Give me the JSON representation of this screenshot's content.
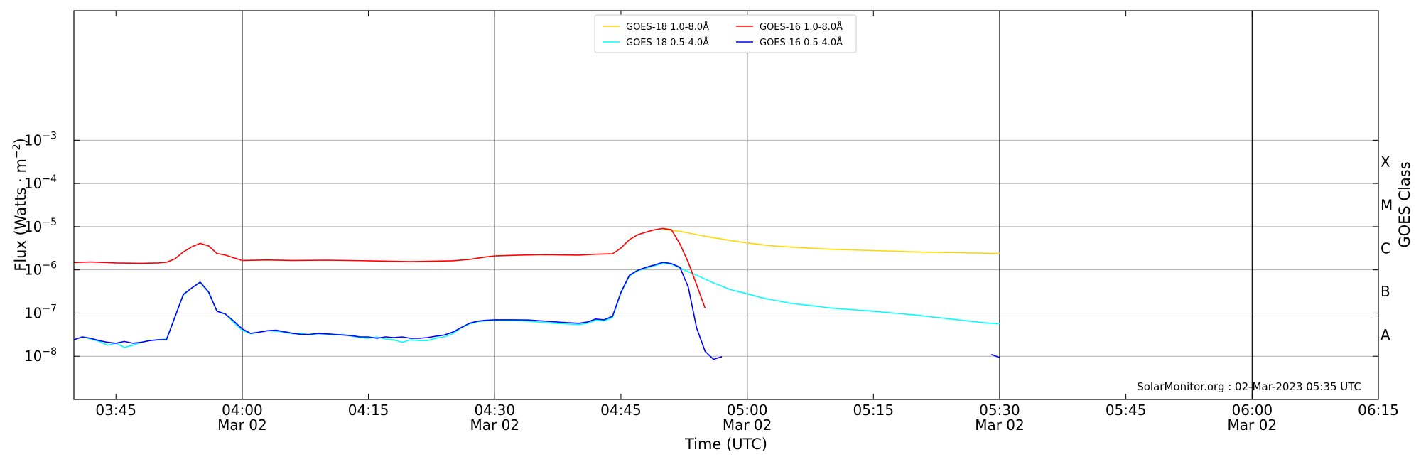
{
  "chart_data": {
    "type": "line",
    "title": "",
    "xlabel": "Time (UTC)",
    "ylabel": "Flux (Watts · m",
    "ylabel_sup": "−2",
    "ylabel_close": ")",
    "right_axis_label": "GOES Class",
    "scale_y": "log",
    "ylim_exp": [
      -9,
      0
    ],
    "xlim_min": [
      -20,
      135
    ],
    "x_unit": "minutes after 04:00 UTC, 02-Mar-2023",
    "grid": "horizontal at decades; vertical lines at 30-minute marks",
    "legend_position": "top-center",
    "credit": "SolarMonitor.org : 02-Mar-2023 05:35 UTC",
    "x_ticks": [
      {
        "t": -15,
        "time": "03:45",
        "date": ""
      },
      {
        "t": 0,
        "time": "04:00",
        "date": "Mar 02"
      },
      {
        "t": 15,
        "time": "04:15",
        "date": ""
      },
      {
        "t": 30,
        "time": "04:30",
        "date": "Mar 02"
      },
      {
        "t": 45,
        "time": "04:45",
        "date": ""
      },
      {
        "t": 60,
        "time": "05:00",
        "date": "Mar 02"
      },
      {
        "t": 75,
        "time": "05:15",
        "date": ""
      },
      {
        "t": 90,
        "time": "05:30",
        "date": "Mar 02"
      },
      {
        "t": 105,
        "time": "05:45",
        "date": ""
      },
      {
        "t": 120,
        "time": "06:00",
        "date": "Mar 02"
      },
      {
        "t": 135,
        "time": "06:15",
        "date": ""
      }
    ],
    "vlines": [
      0,
      30,
      60,
      90,
      120
    ],
    "y_ticks": [
      {
        "exp": -8,
        "base": "10",
        "sup": "−8"
      },
      {
        "exp": -7,
        "base": "10",
        "sup": "−7"
      },
      {
        "exp": -6,
        "base": "10",
        "sup": "−6"
      },
      {
        "exp": -5,
        "base": "10",
        "sup": "−5"
      },
      {
        "exp": -4,
        "base": "10",
        "sup": "−4"
      },
      {
        "exp": -3,
        "base": "10",
        "sup": "−3"
      }
    ],
    "goes_classes": [
      {
        "label": "A",
        "exp": -7.5
      },
      {
        "label": "B",
        "exp": -6.5
      },
      {
        "label": "C",
        "exp": -5.5
      },
      {
        "label": "M",
        "exp": -4.5
      },
      {
        "label": "X",
        "exp": -3.5
      }
    ],
    "series": [
      {
        "name": "GOES-18 1.0-8.0Å",
        "color": "#ffd700",
        "points": [
          [
            50,
            8.7e-06
          ],
          [
            52,
            7.8e-06
          ],
          [
            55,
            6e-06
          ],
          [
            58,
            4.8e-06
          ],
          [
            60,
            4.2e-06
          ],
          [
            63,
            3.6e-06
          ],
          [
            66,
            3.3e-06
          ],
          [
            70,
            3e-06
          ],
          [
            75,
            2.8e-06
          ],
          [
            80,
            2.6e-06
          ],
          [
            85,
            2.5e-06
          ],
          [
            90,
            2.4e-06
          ]
        ]
      },
      {
        "name": "GOES-18 0.5-4.0Å",
        "color": "#00ffff",
        "points": [
          [
            -20,
            2.4e-08
          ],
          [
            -19,
            2.8e-08
          ],
          [
            -18,
            2.5e-08
          ],
          [
            -17,
            2.2e-08
          ],
          [
            -16,
            1.8e-08
          ],
          [
            -15,
            2e-08
          ],
          [
            -14,
            1.6e-08
          ],
          [
            -13,
            1.8e-08
          ],
          [
            -12,
            2.1e-08
          ],
          [
            -11,
            2.3e-08
          ],
          [
            -10,
            2.4e-08
          ],
          [
            -9,
            2.5e-08
          ],
          [
            -8,
            8e-08
          ],
          [
            -7,
            2.6e-07
          ],
          [
            -6,
            3.8e-07
          ],
          [
            -5,
            5.1e-07
          ],
          [
            -4,
            3e-07
          ],
          [
            -3,
            1.1e-07
          ],
          [
            -2,
            9.5e-08
          ],
          [
            -1,
            6e-08
          ],
          [
            0,
            4e-08
          ],
          [
            1,
            3.3e-08
          ],
          [
            2,
            3.6e-08
          ],
          [
            3,
            3.9e-08
          ],
          [
            4,
            3.8e-08
          ],
          [
            5,
            3.6e-08
          ],
          [
            6,
            3.3e-08
          ],
          [
            7,
            3.4e-08
          ],
          [
            8,
            3.1e-08
          ],
          [
            9,
            3.3e-08
          ],
          [
            10,
            3.2e-08
          ],
          [
            11,
            3.1e-08
          ],
          [
            12,
            3.2e-08
          ],
          [
            13,
            2.9e-08
          ],
          [
            14,
            2.7e-08
          ],
          [
            15,
            2.6e-08
          ],
          [
            16,
            2.8e-08
          ],
          [
            17,
            2.5e-08
          ],
          [
            18,
            2.4e-08
          ],
          [
            19,
            2.1e-08
          ],
          [
            20,
            2.4e-08
          ],
          [
            21,
            2.3e-08
          ],
          [
            22,
            2.3e-08
          ],
          [
            23,
            2.6e-08
          ],
          [
            24,
            2.8e-08
          ],
          [
            25,
            3.3e-08
          ],
          [
            26,
            4.5e-08
          ],
          [
            27,
            5.6e-08
          ],
          [
            28,
            6.3e-08
          ],
          [
            29,
            6.6e-08
          ],
          [
            30,
            6.8e-08
          ],
          [
            32,
            6.7e-08
          ],
          [
            34,
            6.5e-08
          ],
          [
            36,
            6e-08
          ],
          [
            38,
            5.7e-08
          ],
          [
            40,
            5.4e-08
          ],
          [
            41,
            5.8e-08
          ],
          [
            42,
            6.8e-08
          ],
          [
            43,
            6.6e-08
          ],
          [
            44,
            7.9e-08
          ],
          [
            45,
            2.9e-07
          ],
          [
            46,
            7.2e-07
          ],
          [
            47,
            9.5e-07
          ],
          [
            48,
            1.1e-06
          ],
          [
            49,
            1.25e-06
          ],
          [
            50,
            1.42e-06
          ],
          [
            51,
            1.35e-06
          ],
          [
            52,
            1.1e-06
          ],
          [
            54,
            7.5e-07
          ],
          [
            56,
            5e-07
          ],
          [
            58,
            3.5e-07
          ],
          [
            60,
            2.8e-07
          ],
          [
            62,
            2.2e-07
          ],
          [
            65,
            1.7e-07
          ],
          [
            68,
            1.45e-07
          ],
          [
            70,
            1.3e-07
          ],
          [
            75,
            1.1e-07
          ],
          [
            80,
            9e-08
          ],
          [
            85,
            7e-08
          ],
          [
            88,
            6e-08
          ],
          [
            90,
            5.6e-08
          ]
        ]
      },
      {
        "name": "GOES-16 1.0-8.0Å",
        "color": "#ff0000",
        "points": [
          [
            -20,
            1.48e-06
          ],
          [
            -18,
            1.52e-06
          ],
          [
            -15,
            1.45e-06
          ],
          [
            -12,
            1.42e-06
          ],
          [
            -10,
            1.45e-06
          ],
          [
            -9,
            1.5e-06
          ],
          [
            -8,
            1.8e-06
          ],
          [
            -7,
            2.6e-06
          ],
          [
            -6,
            3.4e-06
          ],
          [
            -5,
            4.1e-06
          ],
          [
            -4,
            3.6e-06
          ],
          [
            -3,
            2.4e-06
          ],
          [
            -2,
            2.2e-06
          ],
          [
            -1,
            1.9e-06
          ],
          [
            0,
            1.65e-06
          ],
          [
            3,
            1.7e-06
          ],
          [
            6,
            1.65e-06
          ],
          [
            10,
            1.68e-06
          ],
          [
            15,
            1.62e-06
          ],
          [
            20,
            1.55e-06
          ],
          [
            25,
            1.62e-06
          ],
          [
            27,
            1.75e-06
          ],
          [
            29,
            2e-06
          ],
          [
            30,
            2.1e-06
          ],
          [
            33,
            2.2e-06
          ],
          [
            36,
            2.25e-06
          ],
          [
            40,
            2.2e-06
          ],
          [
            42,
            2.3e-06
          ],
          [
            44,
            2.35e-06
          ],
          [
            45,
            3.2e-06
          ],
          [
            46,
            5e-06
          ],
          [
            47,
            6.5e-06
          ],
          [
            48,
            7.5e-06
          ],
          [
            49,
            8.5e-06
          ],
          [
            50,
            9.1e-06
          ],
          [
            51,
            8.5e-06
          ],
          [
            52,
            4e-06
          ],
          [
            53,
            1.5e-06
          ],
          [
            54,
            4.5e-07
          ],
          [
            55,
            1.3e-07
          ]
        ]
      },
      {
        "name": "GOES-16 0.5-4.0Å",
        "color": "#0000ff",
        "segments": [
          [
            [
              -20,
              2.4e-08
            ],
            [
              -19,
              2.8e-08
            ],
            [
              -18,
              2.6e-08
            ],
            [
              -17,
              2.3e-08
            ],
            [
              -16,
              2.1e-08
            ],
            [
              -15,
              2e-08
            ],
            [
              -14,
              2.2e-08
            ],
            [
              -13,
              2e-08
            ],
            [
              -12,
              2.1e-08
            ],
            [
              -11,
              2.3e-08
            ],
            [
              -10,
              2.4e-08
            ],
            [
              -9,
              2.4e-08
            ],
            [
              -8,
              8e-08
            ],
            [
              -7,
              2.7e-07
            ],
            [
              -6,
              3.8e-07
            ],
            [
              -5,
              5.2e-07
            ],
            [
              -4,
              3.1e-07
            ],
            [
              -3,
              1.1e-07
            ],
            [
              -2,
              9.5e-08
            ],
            [
              -1,
              6.5e-08
            ],
            [
              0,
              4.3e-08
            ],
            [
              1,
              3.4e-08
            ],
            [
              2,
              3.6e-08
            ],
            [
              3,
              3.9e-08
            ],
            [
              4,
              4e-08
            ],
            [
              5,
              3.7e-08
            ],
            [
              6,
              3.4e-08
            ],
            [
              7,
              3.2e-08
            ],
            [
              8,
              3.2e-08
            ],
            [
              9,
              3.4e-08
            ],
            [
              10,
              3.3e-08
            ],
            [
              11,
              3.2e-08
            ],
            [
              12,
              3.1e-08
            ],
            [
              13,
              3e-08
            ],
            [
              14,
              2.8e-08
            ],
            [
              15,
              2.8e-08
            ],
            [
              16,
              2.6e-08
            ],
            [
              17,
              2.8e-08
            ],
            [
              18,
              2.7e-08
            ],
            [
              19,
              2.8e-08
            ],
            [
              20,
              2.6e-08
            ],
            [
              21,
              2.6e-08
            ],
            [
              22,
              2.7e-08
            ],
            [
              23,
              2.9e-08
            ],
            [
              24,
              3.1e-08
            ],
            [
              25,
              3.6e-08
            ],
            [
              26,
              4.6e-08
            ],
            [
              27,
              5.8e-08
            ],
            [
              28,
              6.5e-08
            ],
            [
              29,
              6.8e-08
            ],
            [
              30,
              7e-08
            ],
            [
              32,
              7e-08
            ],
            [
              34,
              6.9e-08
            ],
            [
              36,
              6.5e-08
            ],
            [
              38,
              6.1e-08
            ],
            [
              40,
              5.8e-08
            ],
            [
              41,
              6.2e-08
            ],
            [
              42,
              7.3e-08
            ],
            [
              43,
              7e-08
            ],
            [
              44,
              8.4e-08
            ],
            [
              45,
              3e-07
            ],
            [
              46,
              7.5e-07
            ],
            [
              47,
              9.8e-07
            ],
            [
              48,
              1.15e-06
            ],
            [
              49,
              1.3e-06
            ],
            [
              50,
              1.5e-06
            ],
            [
              51,
              1.4e-06
            ],
            [
              52,
              1.15e-06
            ],
            [
              53,
              4e-07
            ],
            [
              54,
              4.5e-08
            ],
            [
              55,
              1.3e-08
            ],
            [
              56,
              8.5e-09
            ],
            [
              57,
              9.8e-09
            ]
          ],
          [
            [
              89,
              1.1e-08
            ],
            [
              90,
              9.3e-09
            ]
          ]
        ]
      }
    ]
  }
}
